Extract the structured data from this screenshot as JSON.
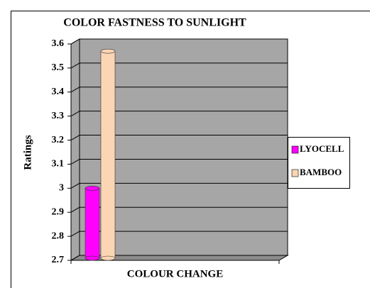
{
  "chart_data": {
    "type": "bar3d",
    "title": "COLOR FASTNESS TO SUNLIGHT",
    "y_label": "Ratings",
    "categories": [
      "COLOUR CHANGE"
    ],
    "series": [
      {
        "name": "LYOCELL",
        "color": "#ff00ff",
        "values": [
          3.0
        ]
      },
      {
        "name": "BAMBOO",
        "color": "#fcd5b4",
        "values": [
          3.57
        ]
      }
    ],
    "ylim": [
      2.7,
      3.6
    ],
    "yticks": [
      2.7,
      2.8,
      2.9,
      3,
      3.1,
      3.2,
      3.3,
      3.4,
      3.5,
      3.6
    ],
    "grid": true,
    "legend": "right"
  }
}
